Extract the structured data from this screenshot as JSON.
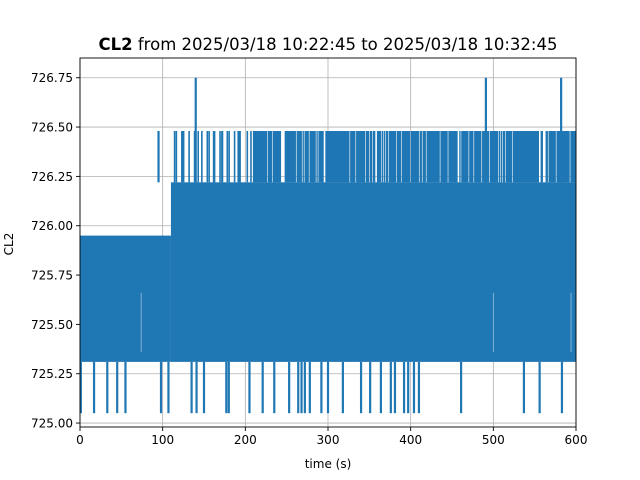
{
  "chart_data": {
    "type": "line",
    "title": {
      "bold": "CL2",
      "rest": " from 2025/03/18 10:22:45 to 2025/03/18 10:32:45"
    },
    "xlabel": "time (s)",
    "ylabel": "CL2",
    "xlim": [
      0,
      600
    ],
    "ylim": [
      724.98,
      726.85
    ],
    "xticks": [
      0,
      100,
      200,
      300,
      400,
      500,
      600
    ],
    "yticks": [
      725.0,
      725.25,
      725.5,
      725.75,
      726.0,
      726.25,
      726.5,
      726.75
    ],
    "grid": true,
    "series": [
      {
        "color": "#1f77b4",
        "baseline": 725.31,
        "band_top_early": 725.95,
        "band_top_late": 726.22,
        "band_transition_x": 110,
        "band_top_upper": 726.48,
        "upper_band_start_x": 210,
        "spikes_high": [
          {
            "x": 95,
            "y": 726.48
          },
          {
            "x": 125,
            "y": 726.48
          },
          {
            "x": 140,
            "y": 726.75
          },
          {
            "x": 162,
            "y": 726.48
          },
          {
            "x": 172,
            "y": 726.48
          },
          {
            "x": 193,
            "y": 726.48
          },
          {
            "x": 491,
            "y": 726.75
          },
          {
            "x": 582,
            "y": 726.75
          }
        ],
        "spikes_low": [
          {
            "x": 1,
            "y": 725.05
          },
          {
            "x": 17,
            "y": 725.05
          },
          {
            "x": 33,
            "y": 725.05
          },
          {
            "x": 45,
            "y": 725.05
          },
          {
            "x": 55,
            "y": 725.05
          },
          {
            "x": 98,
            "y": 725.05
          },
          {
            "x": 107,
            "y": 725.05
          },
          {
            "x": 135,
            "y": 725.05
          },
          {
            "x": 141,
            "y": 725.05
          },
          {
            "x": 150,
            "y": 725.05
          },
          {
            "x": 177,
            "y": 725.05
          },
          {
            "x": 180,
            "y": 725.05
          },
          {
            "x": 205,
            "y": 725.05
          },
          {
            "x": 221,
            "y": 725.05
          },
          {
            "x": 235,
            "y": 725.05
          },
          {
            "x": 253,
            "y": 725.05
          },
          {
            "x": 264,
            "y": 725.05
          },
          {
            "x": 268,
            "y": 725.05
          },
          {
            "x": 272,
            "y": 725.05
          },
          {
            "x": 278,
            "y": 725.05
          },
          {
            "x": 292,
            "y": 725.05
          },
          {
            "x": 300,
            "y": 725.05
          },
          {
            "x": 318,
            "y": 725.05
          },
          {
            "x": 340,
            "y": 725.05
          },
          {
            "x": 351,
            "y": 725.05
          },
          {
            "x": 364,
            "y": 725.05
          },
          {
            "x": 376,
            "y": 725.05
          },
          {
            "x": 381,
            "y": 725.05
          },
          {
            "x": 392,
            "y": 725.05
          },
          {
            "x": 397,
            "y": 725.05
          },
          {
            "x": 404,
            "y": 725.05
          },
          {
            "x": 410,
            "y": 725.05
          },
          {
            "x": 461,
            "y": 725.05
          },
          {
            "x": 537,
            "y": 725.05
          },
          {
            "x": 556,
            "y": 725.05
          },
          {
            "x": 583,
            "y": 725.05
          }
        ]
      }
    ]
  }
}
